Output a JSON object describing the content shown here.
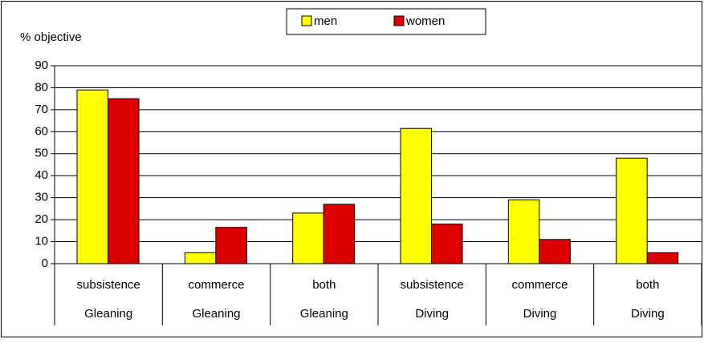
{
  "chart_data": {
    "type": "bar",
    "y_label": "% objective",
    "categories": [
      "subsistence",
      "commerce",
      "both",
      "subsistence",
      "commerce",
      "both"
    ],
    "category_groups": [
      "Gleaning",
      "Gleaning",
      "Gleaning",
      "Diving",
      "Diving",
      "Diving"
    ],
    "series": [
      {
        "name": "men",
        "color": "#ffff00",
        "values": [
          79,
          5,
          23,
          61.5,
          29,
          48
        ]
      },
      {
        "name": "women",
        "color": "#dd0000",
        "values": [
          75,
          16.5,
          27,
          18,
          11,
          5
        ]
      }
    ],
    "ylim": [
      0,
      90
    ],
    "yticks": [
      0,
      10,
      20,
      30,
      40,
      50,
      60,
      70,
      80,
      90
    ],
    "grid": true,
    "legend": "top"
  }
}
